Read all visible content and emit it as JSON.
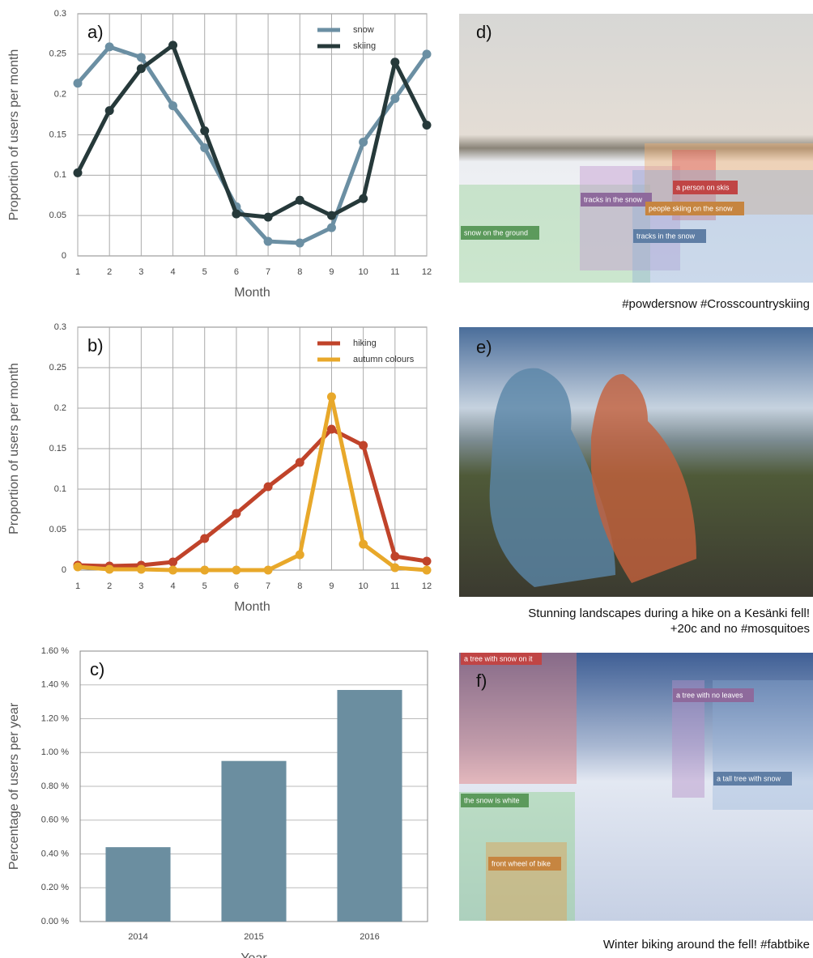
{
  "chart_data": [
    {
      "type": "line",
      "label": "a)",
      "xlabel": "Month",
      "ylabel": "Proportion of users per month",
      "x": [
        1,
        2,
        3,
        4,
        5,
        6,
        7,
        8,
        9,
        10,
        11,
        12
      ],
      "xlim": [
        1,
        12
      ],
      "xticks": [
        1,
        2,
        3,
        4,
        5,
        6,
        7,
        8,
        9,
        10,
        11,
        12
      ],
      "ylim": [
        0,
        0.3
      ],
      "yticks": [
        0,
        0.05,
        0.1,
        0.15,
        0.2,
        0.25,
        0.3
      ],
      "grid": true,
      "legend": "upper right",
      "series": [
        {
          "name": "snow",
          "color": "#6b8fa3",
          "values": [
            0.214,
            0.259,
            0.246,
            0.186,
            0.134,
            0.061,
            0.018,
            0.016,
            0.035,
            0.141,
            0.195,
            0.25
          ]
        },
        {
          "name": "skiing",
          "color": "#26393a",
          "values": [
            0.103,
            0.18,
            0.232,
            0.261,
            0.155,
            0.052,
            0.048,
            0.069,
            0.05,
            0.071,
            0.24,
            0.162
          ]
        }
      ]
    },
    {
      "type": "line",
      "label": "b)",
      "xlabel": "Month",
      "ylabel": "Proportion of users per month",
      "x": [
        1,
        2,
        3,
        4,
        5,
        6,
        7,
        8,
        9,
        10,
        11,
        12
      ],
      "xlim": [
        1,
        12
      ],
      "xticks": [
        1,
        2,
        3,
        4,
        5,
        6,
        7,
        8,
        9,
        10,
        11,
        12
      ],
      "ylim": [
        0,
        0.3
      ],
      "yticks": [
        0,
        0.05,
        0.1,
        0.15,
        0.2,
        0.25,
        0.3
      ],
      "grid": true,
      "legend": "upper right",
      "series": [
        {
          "name": "hiking",
          "color": "#c0432a",
          "values": [
            0.006,
            0.005,
            0.006,
            0.01,
            0.039,
            0.07,
            0.103,
            0.133,
            0.174,
            0.154,
            0.017,
            0.011
          ]
        },
        {
          "name": "autumn colours",
          "color": "#e8a82a",
          "values": [
            0.004,
            0.001,
            0.001,
            0,
            0,
            0,
            0,
            0.019,
            0.214,
            0.032,
            0.003,
            0
          ]
        }
      ]
    },
    {
      "type": "bar",
      "label": "c)",
      "xlabel": "Year",
      "ylabel": "Percentage of users per year",
      "categories": [
        "2014",
        "2015",
        "2016"
      ],
      "values": [
        0.44,
        0.95,
        1.37
      ],
      "color": "#6b8ea0",
      "ylim": [
        0,
        1.6
      ],
      "grid": true,
      "yticks": [
        {
          "value": 0,
          "label": "0.00 %"
        },
        {
          "value": 0.2,
          "label": "0.20 %"
        },
        {
          "value": 0.4,
          "label": "0.40 %"
        },
        {
          "value": 0.6,
          "label": "0.60 %"
        },
        {
          "value": 0.8,
          "label": "0.80 %"
        },
        {
          "value": 1.0,
          "label": "1.00 %"
        },
        {
          "value": 1.2,
          "label": "1.20 %"
        },
        {
          "value": 1.4,
          "label": "1.40 %"
        },
        {
          "value": 1.6,
          "label": "1.60 %"
        }
      ]
    }
  ],
  "photos": [
    {
      "label": "d)",
      "caption": [
        "#powdersnow #Crosscountryskiing"
      ],
      "boxes": [
        "snow on the ground",
        "tracks in the snow",
        "a person on skis",
        "people skiing on the snow",
        "tracks in the snow"
      ]
    },
    {
      "label": "e)",
      "caption": [
        "Stunning landscapes during a hike on a Kesänki fell!",
        "+20c and no #mosquitoes"
      ],
      "boxes": []
    },
    {
      "label": "f)",
      "caption": [
        "Winter biking around the fell! #fabtbike"
      ],
      "boxes": [
        "a tree with snow on it",
        "a tree with no leaves",
        "a tall tree with snow",
        "the snow is white",
        "front wheel of bike"
      ]
    }
  ]
}
